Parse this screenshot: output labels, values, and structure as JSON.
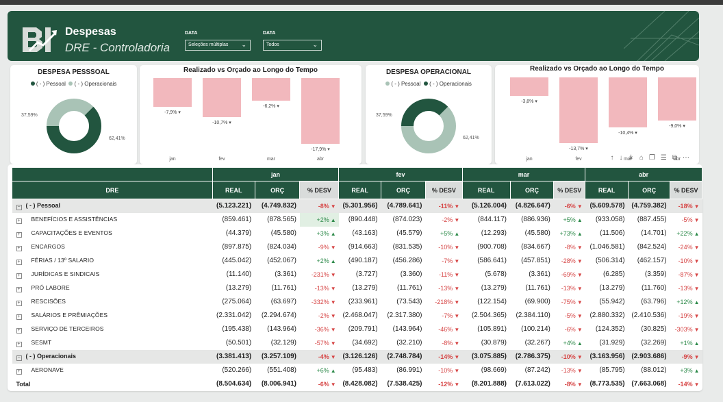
{
  "header": {
    "logo_text": "BI",
    "title": "Despesas",
    "subtitle": "DRE - Controladoria",
    "filters": [
      {
        "label": "DATA",
        "value": "Seleções múltiplas"
      },
      {
        "label": "DATA",
        "value": "Todos"
      }
    ]
  },
  "donut1": {
    "title": "DESPESA PESSSOAL",
    "legend": [
      {
        "label": "( - ) Pessoal",
        "color": "#22553f"
      },
      {
        "label": "( - ) Operacionais",
        "color": "#a9c3b6"
      }
    ],
    "slices": [
      {
        "label": "62,41%",
        "value": 62.41,
        "color": "#22553f"
      },
      {
        "label": "37,59%",
        "value": 37.59,
        "color": "#a9c3b6"
      }
    ]
  },
  "bars1": {
    "title": "Realizado vs Orçado ao Longo do Tempo",
    "months": [
      "jan",
      "fev",
      "mar",
      "abr"
    ],
    "values": [
      -7.9,
      -10.7,
      -6.2,
      -17.9
    ],
    "labels": [
      "-7,9%",
      "-10,7%",
      "-6,2%",
      "-17,9%"
    ]
  },
  "donut2": {
    "title": "DESPESA OPERACIONAL",
    "legend": [
      {
        "label": "( - ) Pessoal",
        "color": "#a9c3b6"
      },
      {
        "label": "( - ) Operacionais",
        "color": "#22553f"
      }
    ],
    "slices": [
      {
        "label": "62,41%",
        "value": 62.41,
        "color": "#a9c3b6"
      },
      {
        "label": "37,59%",
        "value": 37.59,
        "color": "#22553f"
      }
    ]
  },
  "bars2": {
    "title": "Realizado vs Orçado ao Longo do Tempo",
    "months": [
      "jan",
      "fev",
      "mar",
      "abr"
    ],
    "values": [
      -3.8,
      -13.7,
      -10.4,
      -9.0
    ],
    "labels": [
      "-3,8%",
      "-13,7%",
      "-10,4%",
      "-9,0%"
    ]
  },
  "toolbar_icons": [
    "arrow-up-icon",
    "arrow-down-icon",
    "drill-down-icon",
    "expand-hierarchy-icon",
    "copy-icon",
    "filter-icon",
    "focus-mode-icon",
    "more-options-icon"
  ],
  "table": {
    "col_header": "DRE",
    "months": [
      "jan",
      "fev",
      "mar",
      "abr"
    ],
    "sub_headers": [
      "REAL",
      "ORÇ",
      "% DESV"
    ],
    "rows": [
      {
        "type": "group",
        "label": "( - ) Pessoal",
        "cells": [
          [
            "(5.123.221)",
            "(4.749.832)",
            "-8%",
            "d"
          ],
          [
            "(5.301.956)",
            "(4.789.641)",
            "-11%",
            "d"
          ],
          [
            "(5.126.004)",
            "(4.826.647)",
            "-6%",
            "d"
          ],
          [
            "(5.609.578)",
            "(4.759.382)",
            "-18%",
            "d"
          ]
        ]
      },
      {
        "type": "sub",
        "label": "BENEFÍCIOS E ASSISTÊNCIAS",
        "cells": [
          [
            "(859.461)",
            "(878.565)",
            "+2%",
            "u"
          ],
          [
            "(890.448)",
            "(874.023)",
            "-2%",
            "d"
          ],
          [
            "(844.117)",
            "(886.936)",
            "+5%",
            "u"
          ],
          [
            "(933.058)",
            "(887.455)",
            "-5%",
            "d"
          ]
        ]
      },
      {
        "type": "sub",
        "label": "CAPACITAÇÕES E EVENTOS",
        "cells": [
          [
            "(44.379)",
            "(45.580)",
            "+3%",
            "u"
          ],
          [
            "(43.163)",
            "(45.579)",
            "+5%",
            "u"
          ],
          [
            "(12.293)",
            "(45.580)",
            "+73%",
            "u"
          ],
          [
            "(11.506)",
            "(14.701)",
            "+22%",
            "u"
          ]
        ]
      },
      {
        "type": "sub",
        "label": "ENCARGOS",
        "cells": [
          [
            "(897.875)",
            "(824.034)",
            "-9%",
            "d"
          ],
          [
            "(914.663)",
            "(831.535)",
            "-10%",
            "d"
          ],
          [
            "(900.708)",
            "(834.667)",
            "-8%",
            "d"
          ],
          [
            "(1.046.581)",
            "(842.524)",
            "-24%",
            "d"
          ]
        ]
      },
      {
        "type": "sub",
        "label": "FÉRIAS / 13º SALARIO",
        "cells": [
          [
            "(445.042)",
            "(452.067)",
            "+2%",
            "u"
          ],
          [
            "(490.187)",
            "(456.286)",
            "-7%",
            "d"
          ],
          [
            "(586.641)",
            "(457.851)",
            "-28%",
            "d"
          ],
          [
            "(506.314)",
            "(462.157)",
            "-10%",
            "d"
          ]
        ]
      },
      {
        "type": "sub",
        "label": "JURÍDICAS E SINDICAIS",
        "cells": [
          [
            "(11.140)",
            "(3.361)",
            "-231%",
            "d"
          ],
          [
            "(3.727)",
            "(3.360)",
            "-11%",
            "d"
          ],
          [
            "(5.678)",
            "(3.361)",
            "-69%",
            "d"
          ],
          [
            "(6.285)",
            "(3.359)",
            "-87%",
            "d"
          ]
        ]
      },
      {
        "type": "sub",
        "label": "PRÓ LABORE",
        "cells": [
          [
            "(13.279)",
            "(11.761)",
            "-13%",
            "d"
          ],
          [
            "(13.279)",
            "(11.761)",
            "-13%",
            "d"
          ],
          [
            "(13.279)",
            "(11.761)",
            "-13%",
            "d"
          ],
          [
            "(13.279)",
            "(11.760)",
            "-13%",
            "d"
          ]
        ]
      },
      {
        "type": "sub",
        "label": "RESCISÕES",
        "cells": [
          [
            "(275.064)",
            "(63.697)",
            "-332%",
            "d"
          ],
          [
            "(233.961)",
            "(73.543)",
            "-218%",
            "d"
          ],
          [
            "(122.154)",
            "(69.900)",
            "-75%",
            "d"
          ],
          [
            "(55.942)",
            "(63.796)",
            "+12%",
            "u"
          ]
        ]
      },
      {
        "type": "sub",
        "label": "SALÁRIOS E PRÊMIAÇÕES",
        "cells": [
          [
            "(2.331.042)",
            "(2.294.674)",
            "-2%",
            "d"
          ],
          [
            "(2.468.047)",
            "(2.317.380)",
            "-7%",
            "d"
          ],
          [
            "(2.504.365)",
            "(2.384.110)",
            "-5%",
            "d"
          ],
          [
            "(2.880.332)",
            "(2.410.536)",
            "-19%",
            "d"
          ]
        ]
      },
      {
        "type": "sub",
        "label": "SERVIÇO DE TERCEIROS",
        "cells": [
          [
            "(195.438)",
            "(143.964)",
            "-36%",
            "d"
          ],
          [
            "(209.791)",
            "(143.964)",
            "-46%",
            "d"
          ],
          [
            "(105.891)",
            "(100.214)",
            "-6%",
            "d"
          ],
          [
            "(124.352)",
            "(30.825)",
            "-303%",
            "d"
          ]
        ]
      },
      {
        "type": "sub",
        "label": "SESMT",
        "cells": [
          [
            "(50.501)",
            "(32.129)",
            "-57%",
            "d"
          ],
          [
            "(34.692)",
            "(32.210)",
            "-8%",
            "d"
          ],
          [
            "(30.879)",
            "(32.267)",
            "+4%",
            "u"
          ],
          [
            "(31.929)",
            "(32.269)",
            "+1%",
            "u"
          ]
        ]
      },
      {
        "type": "group",
        "label": "( - ) Operacionais",
        "cells": [
          [
            "(3.381.413)",
            "(3.257.109)",
            "-4%",
            "d"
          ],
          [
            "(3.126.126)",
            "(2.748.784)",
            "-14%",
            "d"
          ],
          [
            "(3.075.885)",
            "(2.786.375)",
            "-10%",
            "d"
          ],
          [
            "(3.163.956)",
            "(2.903.686)",
            "-9%",
            "d"
          ]
        ]
      },
      {
        "type": "sub",
        "label": "AERONAVE",
        "cells": [
          [
            "(520.266)",
            "(551.408)",
            "+6%",
            "u"
          ],
          [
            "(95.483)",
            "(86.991)",
            "-10%",
            "d"
          ],
          [
            "(98.669)",
            "(87.242)",
            "-13%",
            "d"
          ],
          [
            "(85.795)",
            "(88.012)",
            "+3%",
            "u"
          ]
        ]
      },
      {
        "type": "total",
        "label": "Total",
        "cells": [
          [
            "(8.504.634)",
            "(8.006.941)",
            "-6%",
            "d"
          ],
          [
            "(8.428.082)",
            "(7.538.425)",
            "-12%",
            "d"
          ],
          [
            "(8.201.888)",
            "(7.613.022)",
            "-8%",
            "d"
          ],
          [
            "(8.773.535)",
            "(7.663.068)",
            "-14%",
            "d"
          ]
        ]
      }
    ]
  }
}
